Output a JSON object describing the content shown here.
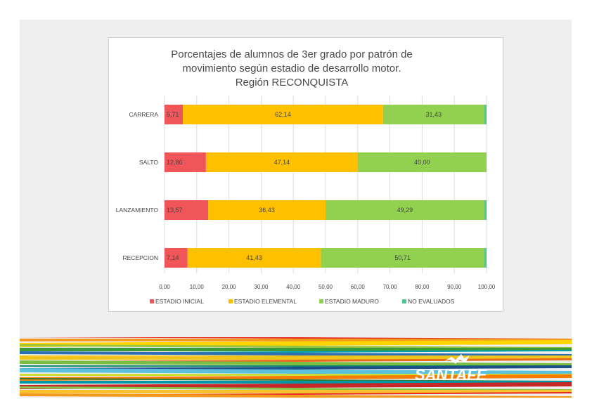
{
  "chart_data": {
    "type": "bar",
    "orientation": "horizontal",
    "stacked": true,
    "title_lines": [
      "Porcentajes de alumnos de 3er grado por patrón de",
      "movimiento según estadio de desarrollo motor.",
      "Región RECONQUISTA"
    ],
    "categories": [
      "CARRERA",
      "SALTO",
      "LANZAMIENTO",
      "RECEPCION"
    ],
    "series": [
      {
        "name": "ESTADIO INICIAL",
        "color": "#f0555a",
        "values": [
          5.71,
          12.86,
          13.57,
          7.14
        ],
        "labels": [
          "5,71",
          "12,86",
          "13,57",
          "7,14"
        ]
      },
      {
        "name": "ESTADIO ELEMENTAL",
        "color": "#ffc000",
        "values": [
          62.14,
          47.14,
          36.43,
          41.43
        ],
        "labels": [
          "62,14",
          "47,14",
          "36,43",
          "41,43"
        ]
      },
      {
        "name": "ESTADIO MADURO",
        "color": "#92d050",
        "values": [
          31.43,
          40.0,
          49.29,
          50.71
        ],
        "labels": [
          "31,43",
          "40,00",
          "49,29",
          "50,71"
        ]
      },
      {
        "name": "NO EVALUADOS",
        "color": "#4cc793",
        "values": [
          0.72,
          0.0,
          0.71,
          0.72
        ],
        "labels": [
          "",
          "",
          "",
          ""
        ]
      }
    ],
    "xlim": [
      0,
      100
    ],
    "xticks": [
      0,
      10,
      20,
      30,
      40,
      50,
      60,
      70,
      80,
      90,
      100
    ],
    "xtick_labels": [
      "0,00",
      "10,00",
      "20,00",
      "30,00",
      "40,00",
      "50,00",
      "60,00",
      "70,00",
      "80,00",
      "90,00",
      "100,00"
    ],
    "legend_position": "bottom",
    "grid": "vertical"
  },
  "brand": {
    "logo_text": "SANTAFE"
  }
}
